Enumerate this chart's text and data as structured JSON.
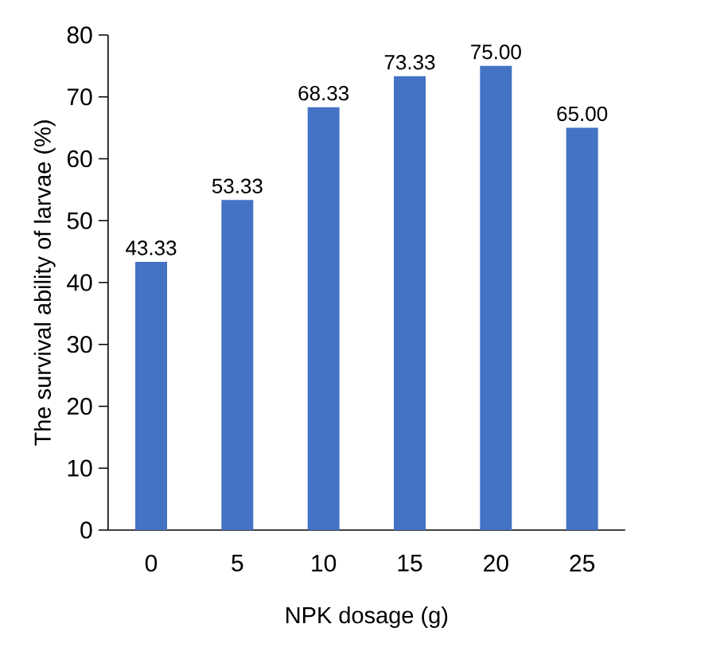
{
  "chart_data": {
    "type": "bar",
    "xlabel": "NPK dosage (g)",
    "ylabel": "The survival ability of larvae (%)",
    "categories": [
      "0",
      "5",
      "10",
      "15",
      "20",
      "25"
    ],
    "values": [
      43.33,
      53.33,
      68.33,
      73.33,
      75.0,
      65.0
    ],
    "value_labels": [
      "43.33",
      "53.33",
      "68.33",
      "73.33",
      "75.00",
      "65.00"
    ],
    "color": "#4472c4",
    "ylim": [
      0,
      80
    ],
    "yticks": [
      0,
      10,
      20,
      30,
      40,
      50,
      60,
      70,
      80
    ],
    "grid": false
  }
}
